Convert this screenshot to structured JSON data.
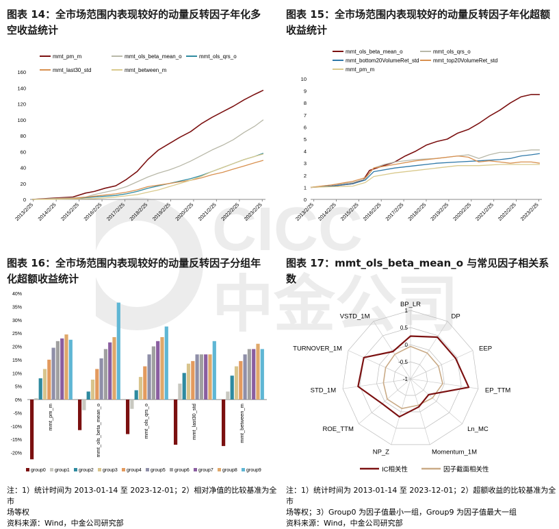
{
  "titles": {
    "fig14": "图表 14：全市场范围内表现较好的动量反转因子年化多空收益统计",
    "fig15": "图表 15：全市场范围内表现较好的动量反转因子年化超额收益统计",
    "fig16": "图表 16：全市场范围内表现较好的动量反转因子分组年化超额收益统计",
    "fig17": "图表 17：mmt_ols_beta_mean_o 与常见因子相关系数"
  },
  "notes": {
    "left_1": "注：1）统计时间为 2013-01-14 至 2023-12-01；2）相对净值的比较基准为全市",
    "left_2": "场等权",
    "left_3": "资料来源：Wind，中金公司研究部",
    "right_1": "注：1）统计时间为 2013-01-14 至 2023-12-01；2）超额收益的比较基准为全市",
    "right_2": "场等权；3）Group0 为因子值最小一组，Group9 为因子值最大一组",
    "right_3": "资料来源：Wind，中金公司研究部"
  },
  "watermark": {
    "text_top": "CICC",
    "text_bottom": "中金公司",
    "color": "#e6e6e6"
  },
  "chart_data": [
    {
      "id": "fig14",
      "type": "line",
      "x_tick_labels": [
        "2013/2/25",
        "2014/2/25",
        "2015/2/25",
        "2016/2/25",
        "2017/2/25",
        "2018/2/25",
        "2019/2/25",
        "2020/2/25",
        "2021/2/25",
        "2022/2/25",
        "2023/2/25"
      ],
      "x_range": [
        2013.0,
        2024.0
      ],
      "ylim": [
        0,
        160
      ],
      "y_ticks": [
        0,
        20,
        40,
        60,
        80,
        100,
        120,
        140,
        160
      ],
      "legend_position": "top",
      "series": [
        {
          "name": "mmt_pm_m",
          "color": "#7b1010",
          "width": 1.6,
          "points": [
            [
              2013.1,
              0
            ],
            [
              2014.0,
              1.5
            ],
            [
              2015.0,
              3
            ],
            [
              2015.6,
              8
            ],
            [
              2016.0,
              10
            ],
            [
              2016.5,
              14
            ],
            [
              2017.0,
              17
            ],
            [
              2017.5,
              25
            ],
            [
              2018.0,
              35
            ],
            [
              2018.5,
              50
            ],
            [
              2019.0,
              62
            ],
            [
              2019.5,
              70
            ],
            [
              2020.0,
              78
            ],
            [
              2020.5,
              85
            ],
            [
              2021.0,
              95
            ],
            [
              2021.5,
              103
            ],
            [
              2022.0,
              110
            ],
            [
              2022.5,
              117
            ],
            [
              2023.0,
              125
            ],
            [
              2023.5,
              132
            ],
            [
              2023.9,
              137
            ]
          ]
        },
        {
          "name": "mmt_ols_beta_mean_o",
          "color": "#b8b8a8",
          "width": 1.3,
          "points": [
            [
              2013.1,
              0
            ],
            [
              2014.0,
              1
            ],
            [
              2015.0,
              2
            ],
            [
              2015.6,
              3
            ],
            [
              2016.0,
              6
            ],
            [
              2016.5,
              9
            ],
            [
              2017.0,
              12
            ],
            [
              2017.5,
              16
            ],
            [
              2018.0,
              22
            ],
            [
              2018.5,
              28
            ],
            [
              2019.0,
              33
            ],
            [
              2019.5,
              37
            ],
            [
              2020.0,
              42
            ],
            [
              2020.5,
              48
            ],
            [
              2021.0,
              55
            ],
            [
              2021.5,
              62
            ],
            [
              2022.0,
              68
            ],
            [
              2022.5,
              75
            ],
            [
              2023.0,
              84
            ],
            [
              2023.5,
              92
            ],
            [
              2023.9,
              100
            ]
          ]
        },
        {
          "name": "mmt_ols_qrs_o",
          "color": "#2e8aa0",
          "width": 1.3,
          "points": [
            [
              2013.1,
              0
            ],
            [
              2014.0,
              0.5
            ],
            [
              2015.0,
              1
            ],
            [
              2016.0,
              3
            ],
            [
              2017.0,
              5
            ],
            [
              2017.5,
              7
            ],
            [
              2018.0,
              10
            ],
            [
              2018.5,
              14
            ],
            [
              2019.0,
              17
            ],
            [
              2019.5,
              20
            ],
            [
              2020.0,
              23
            ],
            [
              2020.5,
              26
            ],
            [
              2021.0,
              30
            ],
            [
              2021.5,
              35
            ],
            [
              2022.0,
              40
            ],
            [
              2022.5,
              45
            ],
            [
              2023.0,
              50
            ],
            [
              2023.5,
              54
            ],
            [
              2023.9,
              58
            ]
          ]
        },
        {
          "name": "mmt_last30_std",
          "color": "#d8904f",
          "width": 1.3,
          "points": [
            [
              2013.1,
              0
            ],
            [
              2014.0,
              0.5
            ],
            [
              2015.0,
              1
            ],
            [
              2016.0,
              4
            ],
            [
              2017.0,
              7
            ],
            [
              2017.5,
              9
            ],
            [
              2018.0,
              12
            ],
            [
              2018.5,
              16
            ],
            [
              2019.0,
              18
            ],
            [
              2019.5,
              20
            ],
            [
              2020.0,
              22
            ],
            [
              2020.5,
              24
            ],
            [
              2021.0,
              27
            ],
            [
              2021.5,
              31
            ],
            [
              2022.0,
              34
            ],
            [
              2022.5,
              38
            ],
            [
              2023.0,
              42
            ],
            [
              2023.5,
              46
            ],
            [
              2023.9,
              49
            ]
          ]
        },
        {
          "name": "mmt_between_m",
          "color": "#d9c98c",
          "width": 1.3,
          "points": [
            [
              2013.1,
              0
            ],
            [
              2014.0,
              0.2
            ],
            [
              2015.0,
              0.5
            ],
            [
              2016.0,
              1
            ],
            [
              2017.0,
              3
            ],
            [
              2018.0,
              6
            ],
            [
              2018.5,
              9
            ],
            [
              2019.0,
              12
            ],
            [
              2019.5,
              16
            ],
            [
              2020.0,
              20
            ],
            [
              2020.5,
              24
            ],
            [
              2021.0,
              29
            ],
            [
              2021.5,
              35
            ],
            [
              2022.0,
              40
            ],
            [
              2022.5,
              45
            ],
            [
              2023.0,
              50
            ],
            [
              2023.5,
              54
            ],
            [
              2023.9,
              57
            ]
          ]
        }
      ]
    },
    {
      "id": "fig15",
      "type": "line",
      "x_tick_labels": [
        "2013/2/25",
        "2014/2/25",
        "2015/2/25",
        "2016/2/25",
        "2017/2/25",
        "2018/2/25",
        "2019/2/25",
        "2020/2/25",
        "2021/2/25",
        "2022/2/25",
        "2023/2/25"
      ],
      "x_range": [
        2013.0,
        2024.0
      ],
      "ylim": [
        0,
        10
      ],
      "y_ticks": [
        0,
        1,
        2,
        3,
        4,
        5,
        6,
        7,
        8,
        9,
        10
      ],
      "legend_position": "top",
      "series": [
        {
          "name": "mmt_ols_beta_mean_o",
          "color": "#7b1010",
          "width": 1.6,
          "points": [
            [
              2013.0,
              1
            ],
            [
              2014.0,
              1.1
            ],
            [
              2015.0,
              1.3
            ],
            [
              2015.5,
              1.6
            ],
            [
              2015.8,
              2.4
            ],
            [
              2016.3,
              2.7
            ],
            [
              2017.0,
              3.1
            ],
            [
              2017.5,
              3.6
            ],
            [
              2018.0,
              4.0
            ],
            [
              2018.5,
              4.5
            ],
            [
              2019.0,
              4.8
            ],
            [
              2019.5,
              5.0
            ],
            [
              2020.0,
              5.5
            ],
            [
              2020.5,
              5.8
            ],
            [
              2021.0,
              6.3
            ],
            [
              2021.5,
              6.9
            ],
            [
              2022.0,
              7.4
            ],
            [
              2022.5,
              8.0
            ],
            [
              2023.0,
              8.5
            ],
            [
              2023.5,
              8.7
            ],
            [
              2023.9,
              8.7
            ]
          ]
        },
        {
          "name": "mmt_ols_qrs_o",
          "color": "#b8b8a8",
          "width": 1.3,
          "points": [
            [
              2013.0,
              1
            ],
            [
              2014.0,
              1.2
            ],
            [
              2015.0,
              1.4
            ],
            [
              2015.6,
              1.7
            ],
            [
              2016.0,
              2.6
            ],
            [
              2016.5,
              2.9
            ],
            [
              2017.0,
              3.1
            ],
            [
              2018.0,
              3.3
            ],
            [
              2019.0,
              3.4
            ],
            [
              2020.0,
              3.6
            ],
            [
              2020.5,
              3.7
            ],
            [
              2021.0,
              3.4
            ],
            [
              2021.5,
              3.7
            ],
            [
              2022.0,
              3.9
            ],
            [
              2022.5,
              3.9
            ],
            [
              2023.0,
              4.0
            ],
            [
              2023.5,
              4.1
            ],
            [
              2023.9,
              4.1
            ]
          ]
        },
        {
          "name": "mmt_bottom20VolumeRet_std",
          "color": "#2e78a8",
          "width": 1.3,
          "points": [
            [
              2013.0,
              1
            ],
            [
              2014.0,
              1.1
            ],
            [
              2015.0,
              1.3
            ],
            [
              2015.6,
              1.6
            ],
            [
              2016.0,
              2.3
            ],
            [
              2017.0,
              2.6
            ],
            [
              2018.0,
              2.8
            ],
            [
              2019.0,
              3.0
            ],
            [
              2020.0,
              3.1
            ],
            [
              2021.0,
              3.2
            ],
            [
              2022.0,
              3.3
            ],
            [
              2022.5,
              3.4
            ],
            [
              2023.0,
              3.6
            ],
            [
              2023.5,
              3.7
            ],
            [
              2023.9,
              3.8
            ]
          ]
        },
        {
          "name": "mmt_top20VolumeRet_std",
          "color": "#d8904f",
          "width": 1.3,
          "points": [
            [
              2013.0,
              1
            ],
            [
              2014.0,
              1.2
            ],
            [
              2015.0,
              1.5
            ],
            [
              2015.6,
              1.8
            ],
            [
              2016.0,
              2.6
            ],
            [
              2017.0,
              2.9
            ],
            [
              2018.0,
              3.2
            ],
            [
              2019.0,
              3.4
            ],
            [
              2020.0,
              3.6
            ],
            [
              2020.5,
              3.5
            ],
            [
              2021.0,
              3.1
            ],
            [
              2021.5,
              3.2
            ],
            [
              2022.0,
              3.1
            ],
            [
              2022.5,
              3.0
            ],
            [
              2023.0,
              3.1
            ],
            [
              2023.5,
              3.1
            ],
            [
              2023.9,
              3.0
            ]
          ]
        },
        {
          "name": "mmt_pm_m",
          "color": "#d9c98c",
          "width": 1.3,
          "points": [
            [
              2013.0,
              1
            ],
            [
              2014.0,
              1.05
            ],
            [
              2015.0,
              1.1
            ],
            [
              2015.6,
              1.4
            ],
            [
              2016.0,
              1.9
            ],
            [
              2017.0,
              2.2
            ],
            [
              2018.0,
              2.4
            ],
            [
              2019.0,
              2.6
            ],
            [
              2020.0,
              2.8
            ],
            [
              2021.0,
              2.8
            ],
            [
              2022.0,
              2.9
            ],
            [
              2023.0,
              2.9
            ],
            [
              2023.9,
              2.9
            ]
          ]
        }
      ]
    },
    {
      "id": "fig16",
      "type": "bar",
      "ylim": [
        -0.25,
        0.4
      ],
      "y_ticks": [
        -0.25,
        -0.2,
        -0.15,
        -0.1,
        -0.05,
        0,
        0.05,
        0.1,
        0.15,
        0.2,
        0.25,
        0.3,
        0.35,
        0.4
      ],
      "y_tick_labels": [
        "",
        "-20%",
        "-15%",
        "-10%",
        "-5%",
        "0%",
        "5%",
        "10%",
        "15%",
        "20%",
        "25%",
        "30%",
        "35%",
        "40%"
      ],
      "categories": [
        "mmt_pm_m",
        "mmt_ols_beta_mean_o",
        "mmt_ols_qrs_o",
        "mmt_last30_std",
        "mmt_between_m"
      ],
      "legend_position": "bottom",
      "series": [
        {
          "name": "group0",
          "color": "#7b1010",
          "values": [
            -0.225,
            -0.115,
            -0.13,
            -0.17,
            -0.175
          ]
        },
        {
          "name": "group1",
          "color": "#c8c8c0",
          "values": [
            0.005,
            -0.04,
            -0.035,
            0.06,
            0.03
          ]
        },
        {
          "name": "group2",
          "color": "#2e8aa0",
          "values": [
            0.08,
            0.03,
            0.035,
            0.1,
            0.09
          ]
        },
        {
          "name": "group3",
          "color": "#d8c48c",
          "values": [
            0.115,
            0.075,
            0.085,
            0.135,
            0.125
          ]
        },
        {
          "name": "group4",
          "color": "#e39a5e",
          "values": [
            0.15,
            0.115,
            0.125,
            0.145,
            0.145
          ]
        },
        {
          "name": "group5",
          "color": "#8f8fa8",
          "values": [
            0.195,
            0.155,
            0.17,
            0.17,
            0.17
          ]
        },
        {
          "name": "group6",
          "color": "#a0a0a0",
          "values": [
            0.22,
            0.19,
            0.2,
            0.17,
            0.19
          ]
        },
        {
          "name": "group7",
          "color": "#8a5ea0",
          "values": [
            0.23,
            0.215,
            0.22,
            0.17,
            0.19
          ]
        },
        {
          "name": "group8",
          "color": "#e0a86a",
          "values": [
            0.245,
            0.235,
            0.235,
            0.17,
            0.21
          ]
        },
        {
          "name": "group9",
          "color": "#5fb6d4",
          "values": [
            0.225,
            0.365,
            0.275,
            0.22,
            0.19
          ]
        }
      ]
    },
    {
      "id": "fig17",
      "type": "radar",
      "rlim": [
        -1,
        1
      ],
      "r_ticks": [
        -1,
        -0.5,
        0,
        0.5,
        1
      ],
      "r_tick_labels": [
        "-1",
        "-0.5",
        "0",
        "0.5",
        "1"
      ],
      "axes": [
        "BP_LR",
        "DP",
        "EEP",
        "EP_TTM",
        "Ln_MC",
        "Momentum_1M",
        "NP_Z",
        "ROE_TTM",
        "STD_1M",
        "TURNOVER_1M",
        "VSTD_1M"
      ],
      "legend_position": "bottom",
      "series": [
        {
          "name": "IC相关性",
          "color": "#7b1010",
          "width": 2.2,
          "values": [
            0.25,
            0.45,
            0.45,
            0.72,
            -0.3,
            -0.15,
            0.15,
            0.1,
            0.55,
            0.5,
            -0.05
          ]
        },
        {
          "name": "因子截面相关性",
          "color": "#c9aa86",
          "width": 1.6,
          "values": [
            -0.05,
            -0.1,
            -0.1,
            -0.05,
            -0.15,
            -0.2,
            -0.1,
            -0.1,
            -0.2,
            -0.2,
            -0.15
          ]
        }
      ]
    }
  ]
}
